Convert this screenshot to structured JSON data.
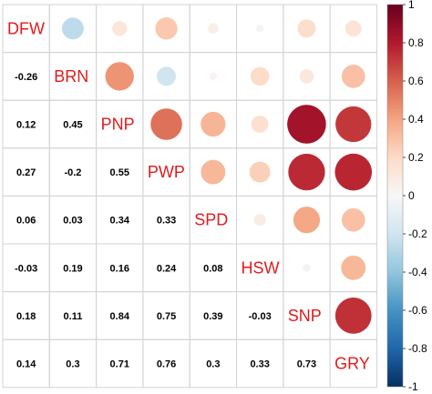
{
  "chart_data": {
    "type": "heatmap",
    "variables": [
      "DFW",
      "BRN",
      "PNP",
      "PWP",
      "SPD",
      "HSW",
      "SNP",
      "GRY"
    ],
    "matrix": [
      [
        1,
        -0.26,
        0.12,
        0.27,
        0.06,
        -0.03,
        0.18,
        0.14
      ],
      [
        -0.26,
        1,
        0.45,
        -0.2,
        0.03,
        0.19,
        0.11,
        0.3
      ],
      [
        0.12,
        0.45,
        1,
        0.55,
        0.34,
        0.16,
        0.84,
        0.71
      ],
      [
        0.27,
        -0.2,
        0.55,
        1,
        0.33,
        0.24,
        0.75,
        0.76
      ],
      [
        0.06,
        0.03,
        0.34,
        0.33,
        1,
        0.08,
        0.39,
        0.3
      ],
      [
        -0.03,
        0.19,
        0.16,
        0.24,
        0.08,
        1,
        -0.03,
        0.33
      ],
      [
        0.18,
        0.11,
        0.84,
        0.75,
        0.39,
        -0.03,
        1,
        0.73
      ],
      [
        0.14,
        0.3,
        0.71,
        0.76,
        0.3,
        0.33,
        0.73,
        1
      ]
    ],
    "coefficient_labels": [
      [
        "-0.26"
      ],
      [
        "0.12",
        "0.45"
      ],
      [
        "0.27",
        "-0.2",
        "0.55"
      ],
      [
        "0.06",
        "0.03",
        "0.34",
        "0.33"
      ],
      [
        "-0.03",
        "0.19",
        "0.16",
        "0.24",
        "0.08"
      ],
      [
        "0.18",
        "0.11",
        "0.84",
        "0.75",
        "0.39",
        "-0.03"
      ],
      [
        "0.14",
        "0.3",
        "0.71",
        "0.76",
        "0.3",
        "0.33",
        "0.73"
      ]
    ],
    "lower_triangle": "numbers",
    "upper_triangle": "circles",
    "diagonal": "variable names",
    "colorbar": {
      "range": [
        -1,
        1
      ],
      "ticks": [
        "1",
        "0.8",
        "0.6",
        "0.4",
        "0.2",
        "0",
        "-0.2",
        "-0.4",
        "-0.6",
        "-0.8",
        "-1"
      ],
      "colors": [
        "#67001f",
        "#b2182b",
        "#d6604d",
        "#f4a582",
        "#fddbc7",
        "#f7f7f7",
        "#d1e5f0",
        "#92c5de",
        "#4393c3",
        "#2166ac",
        "#053061"
      ]
    },
    "grid": true,
    "legend": "right"
  }
}
